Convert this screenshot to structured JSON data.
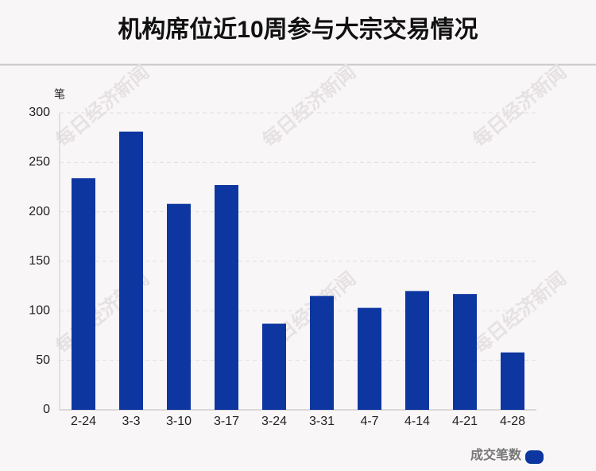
{
  "chart_data": {
    "type": "bar",
    "title": "机构席位近10周参与大宗交易情况",
    "y_unit": "笔",
    "watermark": "每日经济新闻",
    "categories": [
      "2-24",
      "3-3",
      "3-10",
      "3-17",
      "3-24",
      "3-31",
      "4-7",
      "4-14",
      "4-21",
      "4-28"
    ],
    "series": [
      {
        "name": "成交笔数",
        "color": "#0d36a0",
        "values": [
          234,
          281,
          208,
          227,
          87,
          115,
          103,
          120,
          117,
          58
        ]
      }
    ],
    "ylim": [
      0,
      300
    ],
    "yticks": [
      0,
      50,
      100,
      150,
      200,
      250,
      300
    ],
    "grid": true,
    "legend": "bottom-right"
  }
}
